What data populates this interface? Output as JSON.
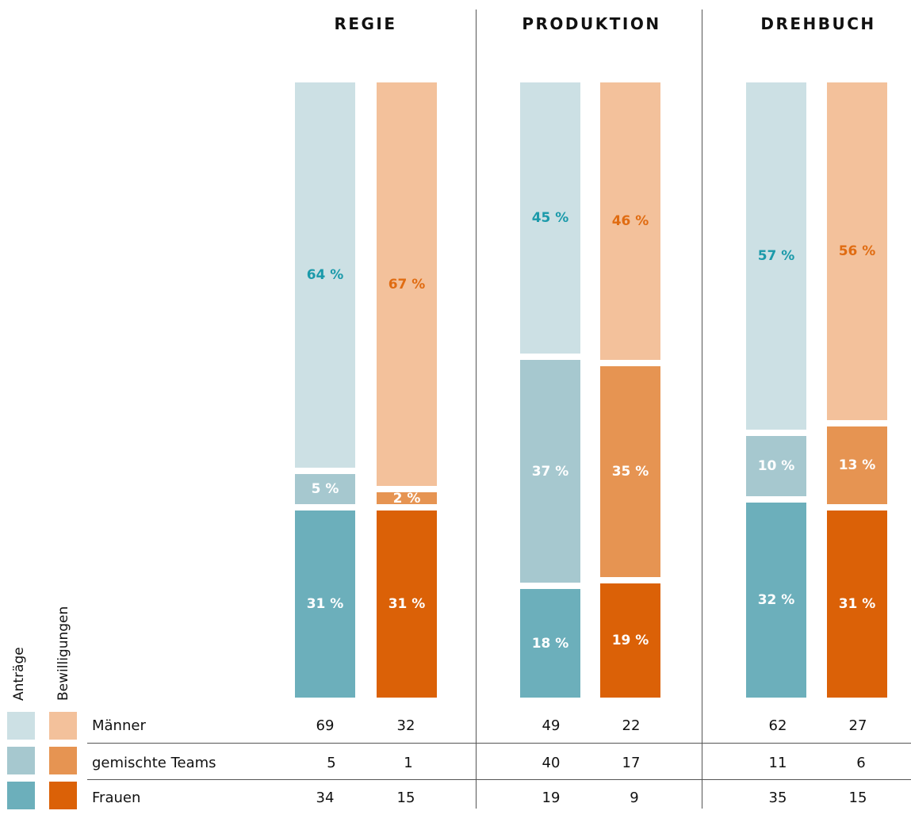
{
  "legend": {
    "antraege_label": "Anträge",
    "bewilligungen_label": "Bewilligungen",
    "rows": [
      "Männer",
      "gemischte Teams",
      "Frauen"
    ]
  },
  "colors": {
    "antraege": [
      "#cce0e4",
      "#a6c8cf",
      "#6cafbb"
    ],
    "bewilligungen": [
      "#f3c19b",
      "#e69452",
      "#db6107"
    ],
    "label_teal": "#1b9aaa",
    "label_orange": "#e06c12",
    "label_white": "#ffffff"
  },
  "chart_data": {
    "type": "bar",
    "stacked": true,
    "normalized_percent": true,
    "groups": [
      {
        "title": "REGIE",
        "bars": [
          {
            "name": "Anträge",
            "frauen": 31,
            "gemischte_teams": 5,
            "maenner": 64
          },
          {
            "name": "Bewilligungen",
            "frauen": 31,
            "gemischte_teams": 2,
            "maenner": 67
          }
        ],
        "labels": {
          "antraege": {
            "maenner": "64 %",
            "gemischte_teams": "5 %",
            "frauen": "31 %"
          },
          "bewilligungen": {
            "maenner": "67 %",
            "gemischte_teams": "2 %",
            "frauen": "31 %"
          }
        },
        "counts": {
          "maenner": [
            "69",
            "32"
          ],
          "gemischte_teams": [
            "5",
            "1"
          ],
          "frauen": [
            "34",
            "15"
          ]
        }
      },
      {
        "title": "PRODUKTION",
        "bars": [
          {
            "name": "Anträge",
            "frauen": 18,
            "gemischte_teams": 37,
            "maenner": 45
          },
          {
            "name": "Bewilligungen",
            "frauen": 19,
            "gemischte_teams": 35,
            "maenner": 46
          }
        ],
        "labels": {
          "antraege": {
            "maenner": "45 %",
            "gemischte_teams": "37 %",
            "frauen": "18 %"
          },
          "bewilligungen": {
            "maenner": "46 %",
            "gemischte_teams": "35 %",
            "frauen": "19 %"
          }
        },
        "counts": {
          "maenner": [
            "49",
            "22"
          ],
          "gemischte_teams": [
            "40",
            "17"
          ],
          "frauen": [
            "19",
            "9"
          ]
        }
      },
      {
        "title": "DREHBUCH",
        "bars": [
          {
            "name": "Anträge",
            "frauen": 32,
            "gemischte_teams": 10,
            "maenner": 57
          },
          {
            "name": "Bewilligungen",
            "frauen": 31,
            "gemischte_teams": 13,
            "maenner": 56
          }
        ],
        "labels": {
          "antraege": {
            "maenner": "57 %",
            "gemischte_teams": "10 %",
            "frauen": "32 %"
          },
          "bewilligungen": {
            "maenner": "56 %",
            "gemischte_teams": "13 %",
            "frauen": "31 %"
          }
        },
        "counts": {
          "maenner": [
            "62",
            "27"
          ],
          "gemischte_teams": [
            "11",
            "6"
          ],
          "frauen": [
            "35",
            "15"
          ]
        }
      }
    ]
  }
}
